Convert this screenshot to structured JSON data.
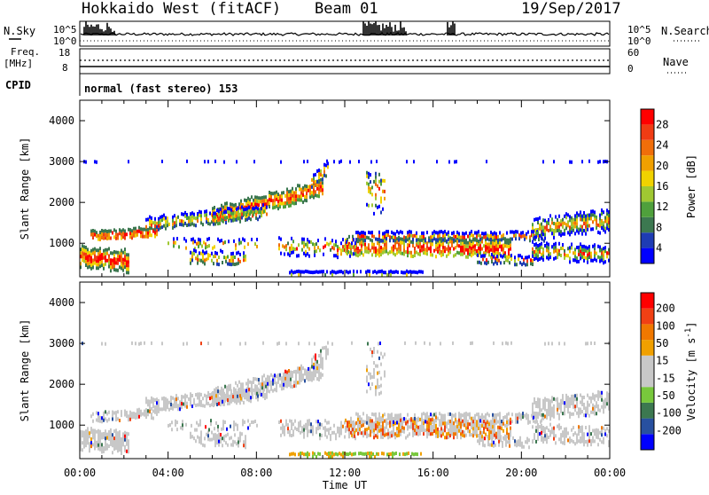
{
  "header": {
    "title": "Hokkaido West (fitACF)",
    "beam": "Beam 01",
    "date": "19/Sep/2017"
  },
  "strip": {
    "nsky_label": "N.Sky",
    "nsky_ticks": [
      "10^5",
      "10^0"
    ],
    "nsearch_label": "N.Search",
    "nsearch_ticks": [
      "10^5",
      "10^0"
    ],
    "freq_label": "Freq.",
    "freq_unit": "[MHz]",
    "freq_ticks": [
      "18",
      "8"
    ],
    "nave_label": "Nave",
    "nave_ticks": [
      "60",
      "0"
    ],
    "cpid_label": "CPID",
    "cpid_text": "normal (fast stereo) 153"
  },
  "colors": {
    "power": [
      "#0000ff",
      "#1e3cb4",
      "#3c7850",
      "#4fa03c",
      "#a0c832",
      "#f0d200",
      "#f0a000",
      "#f06e0a",
      "#f03c14",
      "#ff0000"
    ],
    "velocity": [
      "#0000ff",
      "#2850a0",
      "#3c7850",
      "#78c83c",
      "#c8c8c8",
      "#c8c8c8",
      "#f0a000",
      "#f07800",
      "#f04014",
      "#ff0000"
    ]
  },
  "chart_data": [
    {
      "type": "heatmap",
      "panel": "power",
      "ylabel": "Slant Range [km]",
      "yticks": [
        "1000",
        "2000",
        "3000",
        "4000"
      ],
      "ylim": [
        180,
        4500
      ],
      "xlim": [
        "00:00",
        "24:00"
      ],
      "colorbar_label": "Power [dB]",
      "colorbar_ticks": [
        "4",
        "8",
        "12",
        "16",
        "20",
        "24",
        "28"
      ]
    },
    {
      "type": "heatmap",
      "panel": "velocity",
      "ylabel": "Slant Range [km]",
      "yticks": [
        "1000",
        "2000",
        "3000",
        "4000"
      ],
      "ylim": [
        180,
        4500
      ],
      "xlim": [
        "00:00",
        "24:00"
      ],
      "colorbar_label": "Velocity [m s",
      "colorbar_label_sup": "-1",
      "colorbar_label_end": "]",
      "colorbar_ticks": [
        "200",
        "100",
        "50",
        "15",
        "-15",
        "-50",
        "-100",
        "-200"
      ]
    }
  ],
  "xaxis": {
    "ticks": [
      "00:00",
      "04:00",
      "08:00",
      "12:00",
      "16:00",
      "20:00",
      "00:00"
    ],
    "label": "Time UT"
  }
}
